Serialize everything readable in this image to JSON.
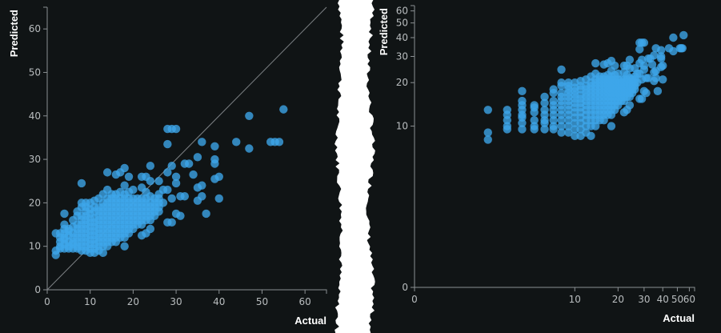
{
  "chart_data": [
    {
      "type": "scatter",
      "xlabel": "Actual",
      "ylabel": "Predicted",
      "xscale": "linear",
      "yscale": "linear",
      "xlim": [
        0,
        65
      ],
      "ylim": [
        0,
        65
      ],
      "xticks": [
        0,
        10,
        20,
        30,
        40,
        50,
        60
      ],
      "yticks": [
        0,
        10,
        20,
        30,
        40,
        50,
        60
      ],
      "reference_line": "y = x",
      "grid": false,
      "point_color": "#3ea6ea"
    },
    {
      "type": "scatter",
      "xlabel": "Actual",
      "ylabel": "Predicted",
      "xscale": "symlog",
      "yscale": "symlog",
      "xlim": [
        0,
        65
      ],
      "ylim": [
        0,
        65
      ],
      "xticks": [
        0,
        10,
        20,
        30,
        40,
        50,
        60
      ],
      "yticks": [
        0,
        10,
        20,
        30,
        40,
        50,
        60
      ],
      "grid": false,
      "point_color": "#3ea6ea"
    }
  ],
  "data": {
    "columns": [
      {
        "actual": 2,
        "predicted": [
          8,
          9,
          13
        ]
      },
      {
        "actual": 3,
        "predicted": [
          9.5,
          10,
          11,
          12,
          13
        ]
      },
      {
        "actual": 4,
        "predicted": [
          9.5,
          10.5,
          11.5,
          12,
          13,
          14,
          15,
          17.5
        ]
      },
      {
        "actual": 5,
        "predicted": [
          9.5,
          10,
          11,
          12.5,
          13.5,
          14
        ]
      },
      {
        "actual": 6,
        "predicted": [
          9.5,
          10.5,
          11,
          12,
          13,
          14.5,
          16
        ]
      },
      {
        "actual": 7,
        "predicted": [
          9.5,
          10,
          11,
          12,
          13,
          14,
          15,
          17,
          18
        ]
      },
      {
        "actual": 8,
        "predicted": [
          9,
          10,
          11,
          12,
          13,
          14,
          15,
          16,
          17,
          19,
          20,
          24.5
        ]
      },
      {
        "actual": 9,
        "predicted": [
          9,
          10,
          11,
          12,
          13,
          14,
          15,
          16,
          17,
          18,
          19,
          20
        ]
      },
      {
        "actual": 10,
        "predicted": [
          8.5,
          9.5,
          10.5,
          11.5,
          12.5,
          13.5,
          14.5,
          15.5,
          16.5,
          17.5,
          18.5,
          20
        ]
      },
      {
        "actual": 11,
        "predicted": [
          8.5,
          9.5,
          10.5,
          11.5,
          12.5,
          13.5,
          14.5,
          15.5,
          16.5,
          18,
          19,
          20.5
        ]
      },
      {
        "actual": 12,
        "predicted": [
          9,
          10,
          11,
          12,
          13,
          14,
          15,
          16,
          17,
          18,
          19,
          21
        ]
      },
      {
        "actual": 13,
        "predicted": [
          8.5,
          10,
          11,
          12,
          13,
          14,
          15,
          16,
          17,
          18,
          19,
          20,
          22
        ]
      },
      {
        "actual": 14,
        "predicted": [
          10,
          11,
          12,
          13,
          14,
          15,
          16,
          17,
          18,
          19,
          20,
          21,
          23,
          27
        ]
      },
      {
        "actual": 15,
        "predicted": [
          11,
          12,
          13,
          14,
          15,
          16,
          17,
          18,
          19,
          20,
          21,
          22
        ]
      },
      {
        "actual": 16,
        "predicted": [
          11,
          12,
          13,
          14,
          15,
          16,
          17,
          18,
          19,
          20,
          21,
          22,
          26.5
        ]
      },
      {
        "actual": 17,
        "predicted": [
          12,
          13,
          14,
          15,
          16,
          17,
          18,
          19,
          20,
          21,
          22.5,
          27
        ]
      },
      {
        "actual": 18,
        "predicted": [
          10,
          12,
          13,
          14,
          15,
          16,
          17,
          18,
          19,
          20,
          21,
          22,
          24,
          28
        ]
      },
      {
        "actual": 19,
        "predicted": [
          13,
          14,
          15,
          16,
          17,
          18,
          19,
          20,
          21,
          22.5,
          26
        ]
      },
      {
        "actual": 20,
        "predicted": [
          14,
          15,
          16,
          17,
          18,
          19,
          20,
          21,
          23
        ]
      },
      {
        "actual": 21,
        "predicted": [
          15,
          16,
          17,
          18,
          19,
          20,
          21
        ]
      },
      {
        "actual": 22,
        "predicted": [
          12.5,
          15,
          16,
          17,
          18,
          19,
          20,
          21,
          23.5,
          26
        ]
      },
      {
        "actual": 23,
        "predicted": [
          13,
          16,
          17,
          18,
          19,
          20,
          21,
          22.5,
          26
        ]
      },
      {
        "actual": 24,
        "predicted": [
          14,
          16,
          17,
          18,
          19,
          20,
          21.5,
          25,
          28.5
        ]
      },
      {
        "actual": 25,
        "predicted": [
          17,
          18,
          19,
          20,
          21
        ]
      },
      {
        "actual": 26,
        "predicted": [
          18,
          19,
          20,
          21,
          22,
          25
        ]
      },
      {
        "actual": 27,
        "predicted": [
          20,
          23
        ]
      },
      {
        "actual": 28,
        "predicted": [
          15.5,
          23,
          27,
          33.5,
          37
        ]
      },
      {
        "actual": 29,
        "predicted": [
          15.5,
          21,
          28.5,
          37
        ]
      },
      {
        "actual": 30,
        "predicted": [
          17.5,
          24.5,
          26,
          37
        ]
      },
      {
        "actual": 31,
        "predicted": [
          17,
          21.5
        ]
      },
      {
        "actual": 32,
        "predicted": [
          21.5,
          29
        ]
      },
      {
        "actual": 33,
        "predicted": [
          29
        ]
      },
      {
        "actual": 34,
        "predicted": [
          26.5
        ]
      },
      {
        "actual": 35,
        "predicted": [
          20.5,
          23.5,
          30.5
        ]
      },
      {
        "actual": 36,
        "predicted": [
          21.5,
          24,
          34
        ]
      },
      {
        "actual": 37,
        "predicted": [
          17.5
        ]
      },
      {
        "actual": 39,
        "predicted": [
          25.5,
          29,
          30,
          33
        ]
      },
      {
        "actual": 40,
        "predicted": [
          21,
          26
        ]
      },
      {
        "actual": 44,
        "predicted": [
          34
        ]
      },
      {
        "actual": 47,
        "predicted": [
          32.5,
          40
        ]
      },
      {
        "actual": 52,
        "predicted": [
          34
        ]
      },
      {
        "actual": 53,
        "predicted": [
          34
        ]
      },
      {
        "actual": 54,
        "predicted": [
          34
        ]
      },
      {
        "actual": 55,
        "predicted": [
          41.5
        ]
      }
    ]
  }
}
